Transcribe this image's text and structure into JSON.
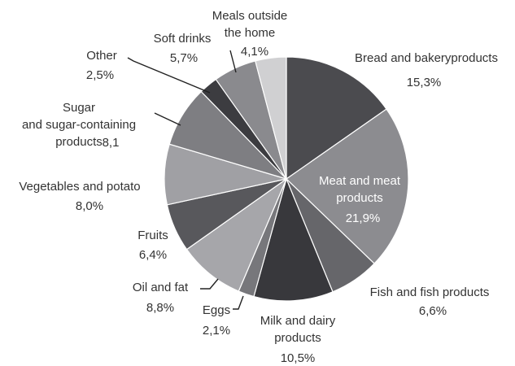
{
  "chart_data": {
    "type": "pie",
    "title": "",
    "start": "top",
    "direction": "clockwise",
    "slices": [
      {
        "label": "Bread and bakeryproducts",
        "value": 15.3,
        "value_text": "15,3%",
        "color": "#4b4b4f"
      },
      {
        "label": "Meat and meat products",
        "value": 21.9,
        "value_text": "21,9%",
        "color": "#8c8c90"
      },
      {
        "label": "Fish and fish products",
        "value": 6.6,
        "value_text": "6,6%",
        "color": "#66666a"
      },
      {
        "label": "Milk and dairy products",
        "value": 10.5,
        "value_text": "10,5%",
        "color": "#38383c"
      },
      {
        "label": "Eggs",
        "value": 2.1,
        "value_text": "2,1%",
        "color": "#77777b"
      },
      {
        "label": "Oil and fat",
        "value": 8.8,
        "value_text": "8,8%",
        "color": "#a6a6aa"
      },
      {
        "label": "Fruits",
        "value": 6.4,
        "value_text": "6,4%",
        "color": "#58585c"
      },
      {
        "label": "Vegetables and potato",
        "value": 8.0,
        "value_text": "8,0%",
        "color": "#a0a0a4"
      },
      {
        "label": "Sugar and sugar-containing products",
        "value": 8.1,
        "value_text": "8,1",
        "color": "#7e7e82"
      },
      {
        "label": "Other",
        "value": 2.5,
        "value_text": "2,5%",
        "color": "#3c3c40"
      },
      {
        "label": "Soft drinks",
        "value": 5.7,
        "value_text": "5,7%",
        "color": "#8a8a8e"
      },
      {
        "label": "Meals outside the home",
        "value": 4.1,
        "value_text": "4,1%",
        "color": "#d0d0d2"
      }
    ]
  }
}
